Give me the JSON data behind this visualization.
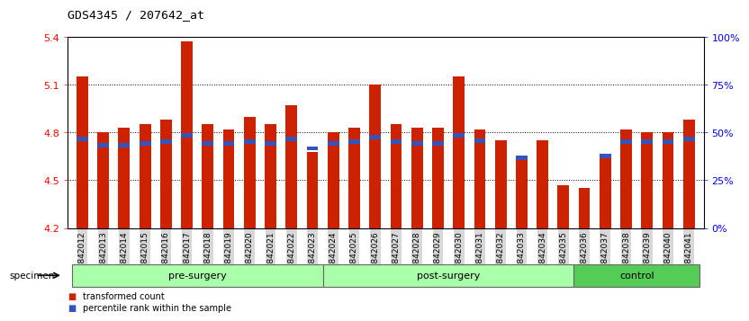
{
  "title": "GDS4345 / 207642_at",
  "categories": [
    "GSM842012",
    "GSM842013",
    "GSM842014",
    "GSM842015",
    "GSM842016",
    "GSM842017",
    "GSM842018",
    "GSM842019",
    "GSM842020",
    "GSM842021",
    "GSM842022",
    "GSM842023",
    "GSM842024",
    "GSM842025",
    "GSM842026",
    "GSM842027",
    "GSM842028",
    "GSM842029",
    "GSM842030",
    "GSM842031",
    "GSM842032",
    "GSM842033",
    "GSM842034",
    "GSM842035",
    "GSM842036",
    "GSM842037",
    "GSM842038",
    "GSM842039",
    "GSM842040",
    "GSM842041"
  ],
  "red_values": [
    5.15,
    4.8,
    4.83,
    4.85,
    4.88,
    5.37,
    4.85,
    4.82,
    4.9,
    4.85,
    4.97,
    4.68,
    4.8,
    4.83,
    5.1,
    4.85,
    4.83,
    4.83,
    5.15,
    4.82,
    4.75,
    4.63,
    4.75,
    4.47,
    4.45,
    4.65,
    4.82,
    4.8,
    4.8,
    4.88
  ],
  "blue_values": [
    4.76,
    4.72,
    4.72,
    4.73,
    4.74,
    4.78,
    4.73,
    4.73,
    4.74,
    4.73,
    4.76,
    4.7,
    4.73,
    4.74,
    4.77,
    4.74,
    4.73,
    4.73,
    4.78,
    4.75,
    null,
    4.64,
    null,
    null,
    null,
    4.65,
    4.74,
    4.74,
    4.74,
    4.76
  ],
  "ylim_left": [
    4.2,
    5.4
  ],
  "ylim_right": [
    0,
    100
  ],
  "yticks_left": [
    4.2,
    4.5,
    4.8,
    5.1,
    5.4
  ],
  "yticks_right": [
    0,
    25,
    50,
    75,
    100
  ],
  "ytick_labels_right": [
    "0%",
    "25%",
    "50%",
    "75%",
    "100%"
  ],
  "group_starts": [
    0,
    12,
    24
  ],
  "group_ends": [
    12,
    24,
    30
  ],
  "group_labels": [
    "pre-surgery",
    "post-surgery",
    "control"
  ],
  "group_colors": [
    "#aaffaa",
    "#aaffaa",
    "#55cc55"
  ],
  "bar_color": "#cc2200",
  "blue_color": "#3355bb",
  "bar_width": 0.55,
  "baseline": 4.2,
  "legend_entries": [
    {
      "label": "transformed count",
      "color": "#cc2200"
    },
    {
      "label": "percentile rank within the sample",
      "color": "#3355bb"
    }
  ],
  "specimen_label": "specimen",
  "background_color": "#ffffff",
  "tick_bg_color": "#d8d8d8"
}
